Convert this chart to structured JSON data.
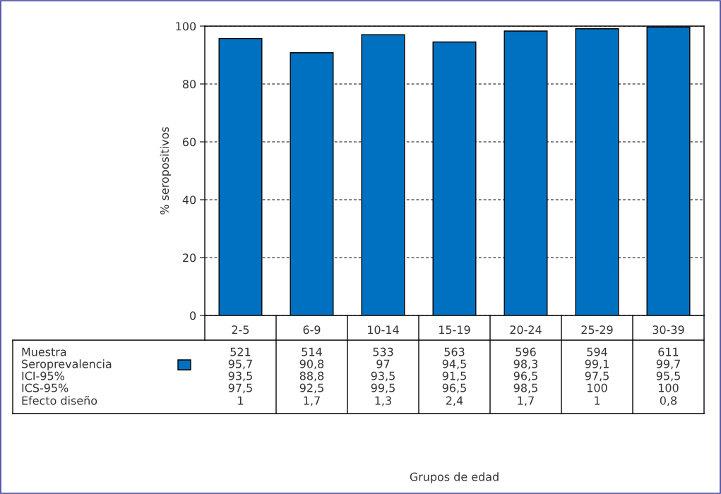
{
  "chart_data": {
    "type": "bar",
    "categories": [
      "2-5",
      "6-9",
      "10-14",
      "15-19",
      "20-24",
      "25-29",
      "30-39"
    ],
    "series": [
      {
        "name": "Seroprevalencia",
        "color": "#0070c0",
        "values": [
          95.7,
          90.8,
          97,
          94.5,
          98.3,
          99.1,
          99.7
        ],
        "value_labels": [
          "95,7",
          "90,8",
          "97",
          "94,5",
          "98,3",
          "99,1",
          "99,7"
        ]
      }
    ],
    "ylabel": "% seropositivos",
    "ylim": [
      0,
      100
    ],
    "yticks": [
      0,
      20,
      40,
      60,
      80,
      100
    ],
    "grid": "y",
    "legend": "bottom left",
    "annotations": [
      "Muestra",
      "521",
      "514",
      "533",
      "563",
      "596",
      "594",
      "611",
      "ICI-95%",
      "93,5",
      "88,8",
      "93,5",
      "91,5",
      "96,5",
      "97,5",
      "95,5",
      "ICS-95%",
      "97,5",
      "92,5",
      "99,5",
      "96,5",
      "98,5",
      "100",
      "100",
      "Efecto diseño",
      "1",
      "1,7",
      "1,3",
      "2,4",
      "1,7",
      "1",
      "0,8",
      "Grupos de edad"
    ]
  }
}
